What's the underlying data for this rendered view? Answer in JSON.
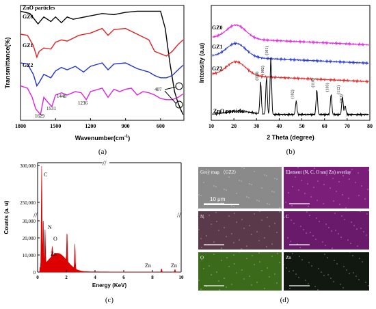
{
  "chart_data": [
    {
      "type": "line",
      "panel_label": "(a)",
      "xlabel": "Wavenumber(cm",
      "xlabel_sup": "-1",
      "xlabel_end": ")",
      "ylabel": "Transmittance(%)",
      "xlim": [
        1800,
        400
      ],
      "x_ticks": [
        "1800",
        "1500",
        "1200",
        "900",
        "600"
      ],
      "series": [
        {
          "name": "ZnO particles",
          "color": "#000000",
          "points": [
            [
              1800,
              0.95
            ],
            [
              1720,
              0.93
            ],
            [
              1650,
              0.84
            ],
            [
              1600,
              0.9
            ],
            [
              1540,
              0.86
            ],
            [
              1500,
              0.9
            ],
            [
              1450,
              0.85
            ],
            [
              1400,
              0.9
            ],
            [
              1350,
              0.88
            ],
            [
              1250,
              0.9
            ],
            [
              1100,
              0.93
            ],
            [
              1000,
              0.92
            ],
            [
              900,
              0.94
            ],
            [
              800,
              0.95
            ],
            [
              700,
              0.95
            ],
            [
              600,
              0.95
            ],
            [
              560,
              0.8
            ],
            [
              520,
              0.5
            ],
            [
              480,
              0.25
            ],
            [
              450,
              0.15
            ],
            [
              430,
              0.1
            ],
            [
              407,
              0.05
            ]
          ]
        },
        {
          "name": "GZ0",
          "color": "#dd2222",
          "points": [
            [
              1800,
              0.75
            ],
            [
              1740,
              0.74
            ],
            [
              1690,
              0.65
            ],
            [
              1660,
              0.55
            ],
            [
              1640,
              0.6
            ],
            [
              1600,
              0.63
            ],
            [
              1540,
              0.62
            ],
            [
              1500,
              0.68
            ],
            [
              1450,
              0.7
            ],
            [
              1400,
              0.69
            ],
            [
              1300,
              0.74
            ],
            [
              1200,
              0.76
            ],
            [
              1100,
              0.8
            ],
            [
              1050,
              0.74
            ],
            [
              1000,
              0.79
            ],
            [
              900,
              0.8
            ],
            [
              800,
              0.75
            ],
            [
              700,
              0.7
            ],
            [
              650,
              0.6
            ],
            [
              600,
              0.58
            ],
            [
              550,
              0.56
            ],
            [
              500,
              0.6
            ],
            [
              450,
              0.66
            ],
            [
              407,
              0.7
            ]
          ]
        },
        {
          "name": "GZ1",
          "color": "#2233cc",
          "points": [
            [
              1800,
              0.5
            ],
            [
              1740,
              0.49
            ],
            [
              1690,
              0.4
            ],
            [
              1660,
              0.3
            ],
            [
              1640,
              0.33
            ],
            [
              1600,
              0.4
            ],
            [
              1540,
              0.37
            ],
            [
              1500,
              0.43
            ],
            [
              1450,
              0.46
            ],
            [
              1400,
              0.44
            ],
            [
              1330,
              0.47
            ],
            [
              1260,
              0.42
            ],
            [
              1200,
              0.47
            ],
            [
              1100,
              0.5
            ],
            [
              1050,
              0.44
            ],
            [
              1000,
              0.49
            ],
            [
              900,
              0.5
            ],
            [
              800,
              0.45
            ],
            [
              700,
              0.42
            ],
            [
              650,
              0.39
            ],
            [
              600,
              0.37
            ],
            [
              550,
              0.37
            ],
            [
              500,
              0.39
            ],
            [
              450,
              0.44
            ],
            [
              407,
              0.48
            ]
          ]
        },
        {
          "name": "GZ2",
          "color": "#dd22dd",
          "points": [
            [
              1800,
              0.3
            ],
            [
              1740,
              0.28
            ],
            [
              1700,
              0.2
            ],
            [
              1670,
              0.1
            ],
            [
              1629,
              0.05
            ],
            [
              1600,
              0.2
            ],
            [
              1560,
              0.15
            ],
            [
              1531,
              0.12
            ],
            [
              1500,
              0.22
            ],
            [
              1448,
              0.24
            ],
            [
              1400,
              0.22
            ],
            [
              1330,
              0.25
            ],
            [
              1280,
              0.24
            ],
            [
              1236,
              0.18
            ],
            [
              1200,
              0.25
            ],
            [
              1100,
              0.28
            ],
            [
              1050,
              0.2
            ],
            [
              1000,
              0.27
            ],
            [
              950,
              0.25
            ],
            [
              900,
              0.27
            ],
            [
              850,
              0.28
            ],
            [
              800,
              0.22
            ],
            [
              750,
              0.25
            ],
            [
              700,
              0.24
            ],
            [
              650,
              0.22
            ],
            [
              600,
              0.19
            ],
            [
              550,
              0.18
            ],
            [
              500,
              0.18
            ],
            [
              450,
              0.2
            ],
            [
              407,
              0.23
            ]
          ]
        }
      ],
      "annotations": [
        "1629",
        "1531",
        "1448",
        "1236",
        "407"
      ]
    },
    {
      "type": "line",
      "panel_label": "(b)",
      "xlabel": "2 Theta (degree)",
      "ylabel": "Intensity (a.u)",
      "xlim": [
        10,
        80
      ],
      "x_ticks": [
        "10",
        "20",
        "30",
        "40",
        "50",
        "60",
        "70",
        "80"
      ],
      "series": [
        {
          "name": "GZ0",
          "color": "#dd22dd",
          "offset": 0.72,
          "kind": "amorphous"
        },
        {
          "name": "GZ1",
          "color": "#2233cc",
          "offset": 0.56,
          "kind": "amorphous"
        },
        {
          "name": "GZ2",
          "color": "#dd2222",
          "offset": 0.4,
          "kind": "amorphous"
        },
        {
          "name": "ZnO particles",
          "color": "#000000",
          "offset": 0.05,
          "kind": "crystal",
          "peaks": [
            [
              31.8,
              0.28,
              "(100)"
            ],
            [
              34.4,
              0.33,
              "(002)"
            ],
            [
              36.3,
              0.5,
              "(101)"
            ],
            [
              47.5,
              0.12,
              "(102)"
            ],
            [
              56.6,
              0.22,
              "(110)"
            ],
            [
              62.9,
              0.18,
              "(103)"
            ],
            [
              67.9,
              0.16,
              "(112)"
            ],
            [
              69.1,
              0.08,
              "(201)"
            ]
          ]
        }
      ]
    },
    {
      "type": "bar",
      "panel_label": "(c)",
      "xlabel": "Energy (KeV)",
      "ylabel": "Counts (a. u)",
      "xlim": [
        0,
        10
      ],
      "x_ticks": [
        "0",
        "2",
        "4",
        "6",
        "8",
        "10"
      ],
      "y_ticks_lower": [
        "0",
        "10,000",
        "20,000",
        "30,000"
      ],
      "y_ticks_upper": [
        "250,000",
        "300,000"
      ],
      "peak_labels": [
        "C",
        "N",
        "O",
        "Zn",
        "Zn",
        "Zn"
      ],
      "color": "#dd0000"
    }
  ],
  "panel_d": {
    "panel_label": "(d)",
    "tiles": [
      {
        "label": "Grey map  （GZ2）",
        "color": "#8a8a8a"
      },
      {
        "label": "Element (N, C, O and Zn) overlay",
        "color": "#7a1e7a"
      },
      {
        "label": "N",
        "color": "#5a3a4a"
      },
      {
        "label": "C",
        "color": "#6a1a6a"
      },
      {
        "label": "O",
        "color": "#3a6a1a"
      },
      {
        "label": "Zn",
        "color": "#101810"
      }
    ],
    "scale_bar": "10 μm"
  }
}
